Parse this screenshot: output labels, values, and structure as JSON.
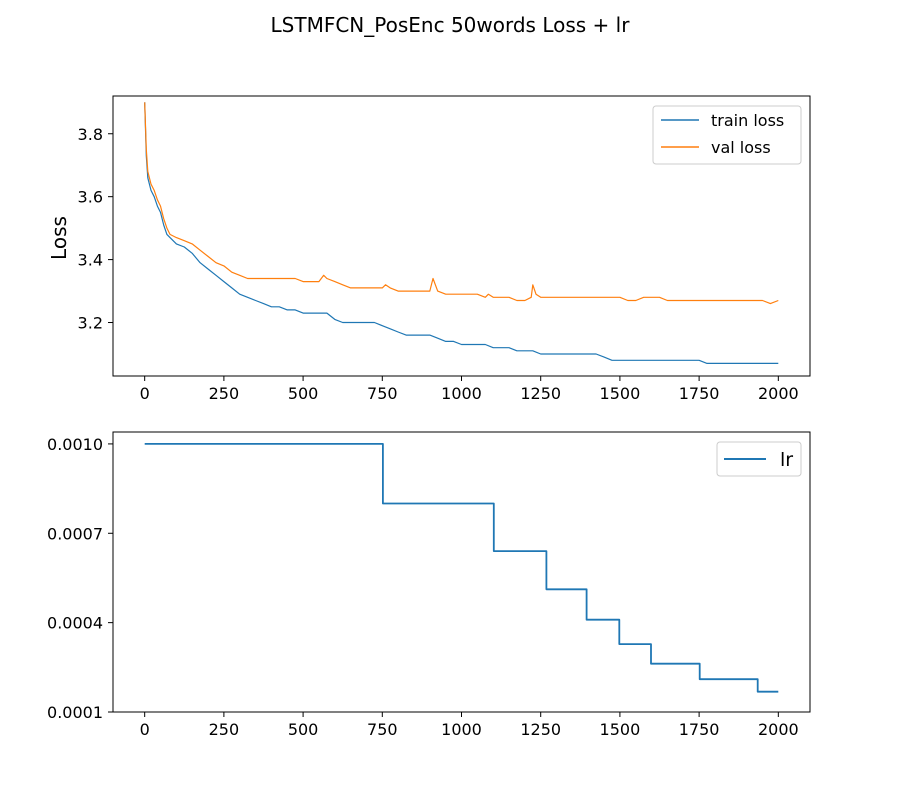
{
  "title": "LSTMFCN_PosEnc 50words Loss + lr",
  "colors": {
    "train": "#1f77b4",
    "val": "#ff7f0e",
    "lr": "#1f77b4"
  },
  "chart_data": [
    {
      "type": "line",
      "ylabel": "Loss",
      "xlim": [
        -100,
        2100
      ],
      "ylim": [
        3.03,
        3.92
      ],
      "xticks": [
        0,
        250,
        500,
        750,
        1000,
        1250,
        1500,
        1750,
        2000
      ],
      "xtick_labels": [
        "0",
        "250",
        "500",
        "750",
        "1000",
        "1250",
        "1500",
        "1750",
        "2000"
      ],
      "yticks": [
        3.2,
        3.4,
        3.6,
        3.8
      ],
      "ytick_labels": [
        "3.2",
        "3.4",
        "3.6",
        "3.8"
      ],
      "legend": "top-right",
      "grid": false,
      "series": [
        {
          "name": "train loss",
          "color": "#1f77b4",
          "x": [
            0,
            5,
            10,
            20,
            30,
            40,
            50,
            60,
            70,
            80,
            100,
            125,
            150,
            175,
            200,
            225,
            250,
            275,
            300,
            325,
            350,
            375,
            400,
            425,
            450,
            475,
            500,
            525,
            550,
            575,
            600,
            625,
            650,
            675,
            700,
            725,
            750,
            775,
            800,
            825,
            850,
            875,
            900,
            925,
            950,
            975,
            1000,
            1025,
            1050,
            1075,
            1100,
            1125,
            1150,
            1175,
            1200,
            1225,
            1250,
            1275,
            1300,
            1325,
            1350,
            1375,
            1400,
            1425,
            1450,
            1475,
            1500,
            1525,
            1550,
            1575,
            1600,
            1625,
            1650,
            1675,
            1700,
            1725,
            1750,
            1775,
            1800,
            1825,
            1850,
            1875,
            1900,
            1925,
            1950,
            1975,
            2000
          ],
          "y": [
            3.9,
            3.73,
            3.66,
            3.62,
            3.6,
            3.57,
            3.55,
            3.51,
            3.48,
            3.47,
            3.45,
            3.44,
            3.42,
            3.39,
            3.37,
            3.35,
            3.33,
            3.31,
            3.29,
            3.28,
            3.27,
            3.26,
            3.25,
            3.25,
            3.24,
            3.24,
            3.23,
            3.23,
            3.23,
            3.23,
            3.21,
            3.2,
            3.2,
            3.2,
            3.2,
            3.2,
            3.19,
            3.18,
            3.17,
            3.16,
            3.16,
            3.16,
            3.16,
            3.15,
            3.14,
            3.14,
            3.13,
            3.13,
            3.13,
            3.13,
            3.12,
            3.12,
            3.12,
            3.11,
            3.11,
            3.11,
            3.1,
            3.1,
            3.1,
            3.1,
            3.1,
            3.1,
            3.1,
            3.1,
            3.09,
            3.08,
            3.08,
            3.08,
            3.08,
            3.08,
            3.08,
            3.08,
            3.08,
            3.08,
            3.08,
            3.08,
            3.08,
            3.07,
            3.07,
            3.07,
            3.07,
            3.07,
            3.07,
            3.07,
            3.07,
            3.07,
            3.07
          ]
        },
        {
          "name": "val loss",
          "color": "#ff7f0e",
          "x": [
            0,
            5,
            10,
            20,
            30,
            40,
            50,
            60,
            70,
            80,
            100,
            125,
            150,
            175,
            200,
            225,
            250,
            275,
            300,
            325,
            350,
            375,
            400,
            425,
            450,
            475,
            500,
            525,
            550,
            565,
            575,
            600,
            625,
            650,
            675,
            700,
            725,
            750,
            760,
            775,
            800,
            825,
            850,
            875,
            900,
            910,
            925,
            950,
            975,
            1000,
            1025,
            1050,
            1075,
            1085,
            1100,
            1125,
            1150,
            1175,
            1200,
            1220,
            1225,
            1235,
            1250,
            1275,
            1300,
            1325,
            1350,
            1375,
            1400,
            1425,
            1450,
            1475,
            1500,
            1525,
            1550,
            1575,
            1600,
            1625,
            1650,
            1675,
            1700,
            1725,
            1750,
            1775,
            1800,
            1825,
            1850,
            1875,
            1900,
            1925,
            1950,
            1975,
            2000
          ],
          "y": [
            3.9,
            3.75,
            3.68,
            3.64,
            3.62,
            3.59,
            3.57,
            3.53,
            3.5,
            3.48,
            3.47,
            3.46,
            3.45,
            3.43,
            3.41,
            3.39,
            3.38,
            3.36,
            3.35,
            3.34,
            3.34,
            3.34,
            3.34,
            3.34,
            3.34,
            3.34,
            3.33,
            3.33,
            3.33,
            3.35,
            3.34,
            3.33,
            3.32,
            3.31,
            3.31,
            3.31,
            3.31,
            3.31,
            3.32,
            3.31,
            3.3,
            3.3,
            3.3,
            3.3,
            3.3,
            3.34,
            3.3,
            3.29,
            3.29,
            3.29,
            3.29,
            3.29,
            3.28,
            3.29,
            3.28,
            3.28,
            3.28,
            3.27,
            3.27,
            3.28,
            3.32,
            3.29,
            3.28,
            3.28,
            3.28,
            3.28,
            3.28,
            3.28,
            3.28,
            3.28,
            3.28,
            3.28,
            3.28,
            3.27,
            3.27,
            3.28,
            3.28,
            3.28,
            3.27,
            3.27,
            3.27,
            3.27,
            3.27,
            3.27,
            3.27,
            3.27,
            3.27,
            3.27,
            3.27,
            3.27,
            3.27,
            3.26,
            3.27
          ]
        }
      ]
    },
    {
      "type": "line",
      "ylabel": "",
      "xlim": [
        -100,
        2100
      ],
      "ylim": [
        0.0001,
        0.00104
      ],
      "xticks": [
        0,
        250,
        500,
        750,
        1000,
        1250,
        1500,
        1750,
        2000
      ],
      "xtick_labels": [
        "0",
        "250",
        "500",
        "750",
        "1000",
        "1250",
        "1500",
        "1750",
        "2000"
      ],
      "yticks": [
        0.0001,
        0.0004,
        0.0007,
        0.001
      ],
      "ytick_labels": [
        "0.0001",
        "0.0004",
        "0.0007",
        "0.0010"
      ],
      "legend": "top-right",
      "grid": false,
      "series": [
        {
          "name": "lr",
          "color": "#1f77b4",
          "x": [
            0,
            752,
            752,
            1102,
            1102,
            1268,
            1268,
            1395,
            1395,
            1498,
            1498,
            1598,
            1598,
            1752,
            1752,
            1935,
            1935,
            2000
          ],
          "y": [
            0.001,
            0.001,
            0.0008,
            0.0008,
            0.00064,
            0.00064,
            0.000512,
            0.000512,
            0.00041,
            0.00041,
            0.000328,
            0.000328,
            0.000262,
            0.000262,
            0.00021,
            0.00021,
            0.000168,
            0.000168
          ]
        }
      ]
    }
  ]
}
